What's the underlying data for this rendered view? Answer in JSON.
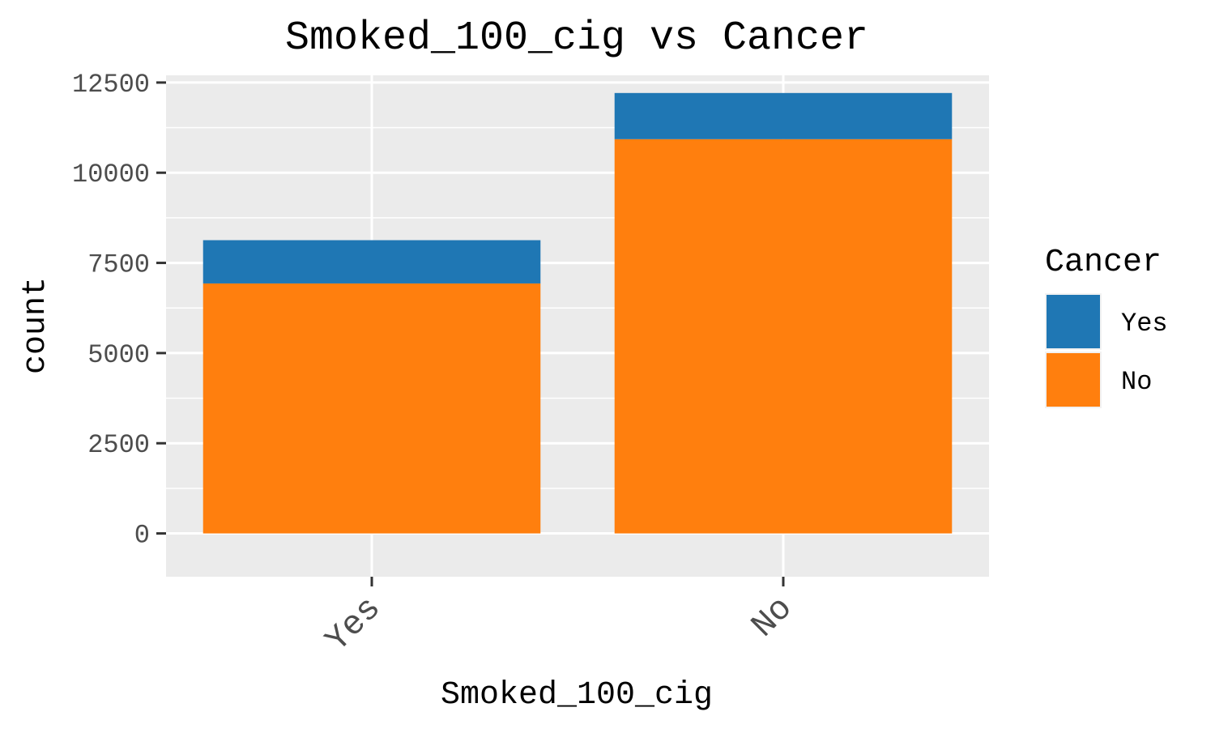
{
  "chart_data": {
    "type": "bar",
    "stacked": true,
    "title": "Smoked_100_cig vs Cancer",
    "xlabel": "Smoked_100_cig",
    "ylabel": "count",
    "categories": [
      "Yes",
      "No"
    ],
    "series": [
      {
        "name": "No",
        "color": "#ff7f0e",
        "values": [
          6930,
          10930
        ]
      },
      {
        "name": "Yes",
        "color": "#1f77b4",
        "values": [
          1200,
          1280
        ]
      }
    ],
    "ylim": [
      -1200,
      12700
    ],
    "yticks": [
      0,
      2500,
      5000,
      7500,
      10000,
      12500
    ],
    "ytick_labels": [
      "0",
      "2500",
      "5000",
      "7500",
      "10000",
      "12500"
    ],
    "grid": true,
    "legend": {
      "title": "Cancer",
      "position": "right",
      "entries": [
        {
          "label": "Yes",
          "color": "#1f77b4"
        },
        {
          "label": "No",
          "color": "#ff7f0e"
        }
      ]
    }
  }
}
